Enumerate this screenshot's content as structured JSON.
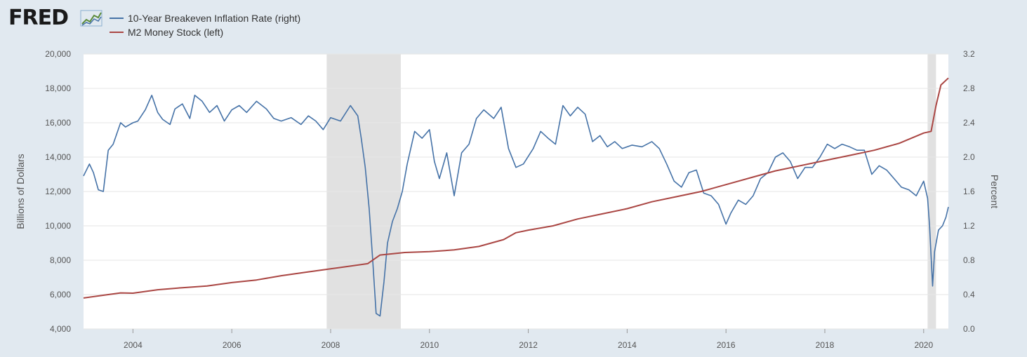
{
  "logo": {
    "text": "FRED",
    "icon": "line-chart-icon"
  },
  "colors": {
    "background": "#e1e9f0",
    "plot_background": "#ffffff",
    "recession": "#e1e1e1",
    "breakeven": "#4572a7",
    "m2": "#aa4643"
  },
  "chart_data": {
    "type": "line",
    "x_ticks": [
      "2004",
      "2006",
      "2008",
      "2010",
      "2012",
      "2014",
      "2016",
      "2018",
      "2020"
    ],
    "xlim": [
      2003.0,
      2020.5
    ],
    "y_left": {
      "label": "Billions of Dollars",
      "ticks": [
        "4,000",
        "6,000",
        "8,000",
        "10,000",
        "12,000",
        "14,000",
        "16,000",
        "18,000",
        "20,000"
      ],
      "range": [
        4000,
        20000
      ]
    },
    "y_right": {
      "label": "Percent",
      "ticks": [
        "0.0",
        "0.4",
        "0.8",
        "1.2",
        "1.6",
        "2.0",
        "2.4",
        "2.8",
        "3.2"
      ],
      "range": [
        0,
        3.2
      ]
    },
    "recessions": [
      [
        2007.92,
        2009.42
      ],
      [
        2020.08,
        2020.25
      ]
    ],
    "grid": true,
    "legend_position": "top-left",
    "series": [
      {
        "name": "10-Year Breakeven Inflation Rate (right)",
        "axis": "right",
        "color": "#4572a7",
        "x": [
          2003.0,
          2003.12,
          2003.2,
          2003.3,
          2003.4,
          2003.5,
          2003.6,
          2003.75,
          2003.85,
          2004.0,
          2004.1,
          2004.25,
          2004.38,
          2004.5,
          2004.6,
          2004.75,
          2004.85,
          2005.0,
          2005.15,
          2005.25,
          2005.4,
          2005.55,
          2005.7,
          2005.85,
          2006.0,
          2006.15,
          2006.3,
          2006.5,
          2006.7,
          2006.85,
          2007.0,
          2007.2,
          2007.4,
          2007.55,
          2007.7,
          2007.85,
          2008.0,
          2008.2,
          2008.4,
          2008.55,
          2008.62,
          2008.7,
          2008.78,
          2008.85,
          2008.92,
          2009.0,
          2009.08,
          2009.15,
          2009.25,
          2009.35,
          2009.45,
          2009.55,
          2009.7,
          2009.85,
          2010.0,
          2010.1,
          2010.2,
          2010.35,
          2010.5,
          2010.65,
          2010.8,
          2010.95,
          2011.1,
          2011.3,
          2011.45,
          2011.6,
          2011.75,
          2011.9,
          2012.1,
          2012.25,
          2012.4,
          2012.55,
          2012.7,
          2012.85,
          2013.0,
          2013.15,
          2013.3,
          2013.45,
          2013.6,
          2013.75,
          2013.9,
          2014.1,
          2014.3,
          2014.5,
          2014.65,
          2014.8,
          2014.95,
          2015.1,
          2015.25,
          2015.4,
          2015.55,
          2015.7,
          2015.85,
          2016.0,
          2016.1,
          2016.25,
          2016.4,
          2016.55,
          2016.7,
          2016.85,
          2017.0,
          2017.15,
          2017.3,
          2017.45,
          2017.6,
          2017.75,
          2017.9,
          2018.05,
          2018.2,
          2018.35,
          2018.5,
          2018.65,
          2018.8,
          2018.95,
          2019.1,
          2019.25,
          2019.4,
          2019.55,
          2019.7,
          2019.85,
          2020.0,
          2020.08,
          2020.12,
          2020.18,
          2020.22,
          2020.3,
          2020.38,
          2020.45,
          2020.5
        ],
        "values": [
          1.78,
          1.92,
          1.82,
          1.62,
          1.6,
          2.08,
          2.15,
          2.4,
          2.35,
          2.4,
          2.42,
          2.55,
          2.72,
          2.52,
          2.44,
          2.38,
          2.56,
          2.62,
          2.45,
          2.72,
          2.65,
          2.52,
          2.6,
          2.42,
          2.55,
          2.6,
          2.52,
          2.65,
          2.56,
          2.45,
          2.42,
          2.46,
          2.38,
          2.48,
          2.42,
          2.32,
          2.46,
          2.42,
          2.6,
          2.48,
          2.22,
          1.88,
          1.4,
          0.82,
          0.18,
          0.15,
          0.55,
          1.0,
          1.25,
          1.4,
          1.6,
          1.92,
          2.3,
          2.22,
          2.32,
          1.95,
          1.75,
          2.05,
          1.55,
          2.05,
          2.15,
          2.45,
          2.55,
          2.45,
          2.58,
          2.1,
          1.88,
          1.92,
          2.1,
          2.3,
          2.22,
          2.15,
          2.6,
          2.48,
          2.58,
          2.5,
          2.18,
          2.25,
          2.12,
          2.18,
          2.1,
          2.14,
          2.12,
          2.18,
          2.1,
          1.92,
          1.72,
          1.65,
          1.82,
          1.85,
          1.58,
          1.55,
          1.45,
          1.22,
          1.35,
          1.5,
          1.45,
          1.55,
          1.75,
          1.82,
          2.0,
          2.05,
          1.95,
          1.75,
          1.88,
          1.88,
          2.0,
          2.15,
          2.1,
          2.15,
          2.12,
          2.08,
          2.08,
          1.8,
          1.9,
          1.85,
          1.75,
          1.65,
          1.62,
          1.55,
          1.72,
          1.52,
          1.2,
          0.5,
          0.9,
          1.15,
          1.2,
          1.3,
          1.42
        ]
      },
      {
        "name": "M2 Money Stock (left)",
        "axis": "left",
        "color": "#aa4643",
        "x": [
          2003.0,
          2003.5,
          2003.75,
          2004.0,
          2004.5,
          2005.0,
          2005.5,
          2006.0,
          2006.5,
          2007.0,
          2007.5,
          2008.0,
          2008.5,
          2008.75,
          2009.0,
          2009.5,
          2010.0,
          2010.5,
          2011.0,
          2011.5,
          2011.75,
          2012.0,
          2012.5,
          2013.0,
          2013.5,
          2014.0,
          2014.5,
          2015.0,
          2015.5,
          2016.0,
          2016.5,
          2017.0,
          2017.5,
          2018.0,
          2018.5,
          2019.0,
          2019.5,
          2020.0,
          2020.15,
          2020.25,
          2020.35,
          2020.5
        ],
        "values": [
          5800,
          6000,
          6100,
          6080,
          6280,
          6400,
          6500,
          6700,
          6850,
          7100,
          7300,
          7500,
          7700,
          7800,
          8300,
          8450,
          8500,
          8600,
          8800,
          9200,
          9600,
          9750,
          10000,
          10400,
          10700,
          11000,
          11400,
          11700,
          12000,
          12400,
          12800,
          13200,
          13500,
          13800,
          14100,
          14400,
          14800,
          15400,
          15500,
          17000,
          18200,
          18600
        ]
      }
    ]
  }
}
